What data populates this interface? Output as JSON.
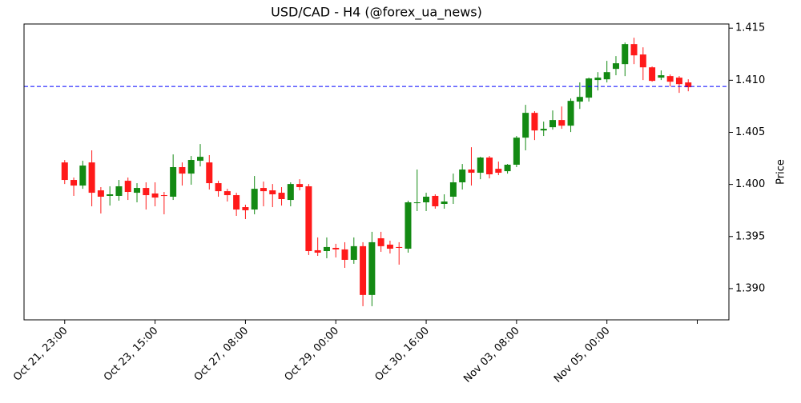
{
  "chart_data": {
    "type": "candlestick",
    "title": "USD/CAD - H4 (@forex_ua_news)",
    "y_label": "Price",
    "categories": [
      "Oct 21, 23:00",
      null,
      null,
      null,
      null,
      null,
      null,
      null,
      null,
      null,
      "Oct 23, 15:00",
      null,
      null,
      null,
      null,
      null,
      null,
      null,
      null,
      null,
      "Oct 27, 08:00",
      null,
      null,
      null,
      null,
      null,
      null,
      null,
      null,
      null,
      "Oct 29, 00:00",
      null,
      null,
      null,
      null,
      null,
      null,
      null,
      null,
      null,
      "Oct 30, 16:00",
      null,
      null,
      null,
      null,
      null,
      null,
      null,
      null,
      null,
      "Nov 03, 08:00",
      null,
      null,
      null,
      null,
      null,
      null,
      null,
      null,
      null,
      "Nov 05, 00:00",
      null,
      null,
      null,
      null,
      null,
      null,
      null,
      null,
      null
    ],
    "xticks": [
      0,
      10,
      20,
      30,
      40,
      50,
      60,
      70
    ],
    "xlim": [
      -4.5,
      73.5
    ],
    "open": [
      1.40211,
      1.40043,
      1.39989,
      1.40211,
      1.39943,
      1.3989,
      1.3989,
      1.40035,
      1.3992,
      1.39966,
      1.39913,
      1.39897,
      1.39882,
      1.40166,
      1.40104,
      1.40227,
      1.40211,
      1.40012,
      1.39935,
      1.39897,
      1.39782,
      1.39759,
      1.39966,
      1.39943,
      1.3992,
      1.39851,
      1.40004,
      1.39982,
      1.39368,
      1.3936,
      1.39391,
      1.39376,
      1.39276,
      1.39407,
      1.38939,
      1.39483,
      1.39422,
      1.39399,
      1.39383,
      1.3982,
      1.39828,
      1.3989,
      1.39813,
      1.39882,
      1.4002,
      1.40143,
      1.40112,
      1.40258,
      1.4015,
      1.40127,
      1.40189,
      1.40449,
      1.40687,
      1.40518,
      1.40549,
      1.40618,
      1.40564,
      1.40795,
      1.40833,
      1.41002,
      1.41009,
      1.41109,
      1.41155,
      1.41347,
      1.41247,
      1.41124,
      1.41025,
      1.4104,
      1.41025,
      1.40979
    ],
    "high": [
      1.40234,
      1.40066,
      1.40227,
      1.40327,
      1.39974,
      1.39982,
      1.40043,
      1.40066,
      1.40012,
      1.4002,
      1.4002,
      1.39928,
      1.40288,
      1.40211,
      1.40273,
      1.40388,
      1.40281,
      1.40035,
      1.39958,
      1.3992,
      1.39805,
      1.40081,
      1.40027,
      1.40004,
      1.39974,
      1.4002,
      1.4005,
      1.40004,
      1.39491,
      1.39491,
      1.3943,
      1.39445,
      1.39491,
      1.39445,
      1.39545,
      1.39545,
      1.3946,
      1.39445,
      1.39844,
      1.40143,
      1.3992,
      1.39905,
      1.39905,
      1.40104,
      1.40196,
      1.40357,
      1.40265,
      1.40273,
      1.40219,
      1.40196,
      1.40465,
      1.40764,
      1.40703,
      1.40603,
      1.4071,
      1.40748,
      1.40825,
      1.40979,
      1.41025,
      1.41078,
      1.41186,
      1.41232,
      1.41362,
      1.41408,
      1.41316,
      1.41132,
      1.41094,
      1.41055,
      1.4104,
      1.41009
    ],
    "low": [
      1.40004,
      1.3989,
      1.39958,
      1.3979,
      1.39721,
      1.39797,
      1.39844,
      1.39851,
      1.39828,
      1.39759,
      1.3979,
      1.39713,
      1.39851,
      1.39989,
      1.39997,
      1.40173,
      1.39951,
      1.39882,
      1.39836,
      1.39698,
      1.39667,
      1.39713,
      1.3979,
      1.39782,
      1.39797,
      1.3979,
      1.39943,
      1.39322,
      1.39314,
      1.39291,
      1.39299,
      1.39199,
      1.39238,
      1.38831,
      1.38831,
      1.39353,
      1.39337,
      1.3923,
      1.39345,
      1.39744,
      1.39744,
      1.39767,
      1.39767,
      1.39813,
      1.39951,
      1.39989,
      1.4005,
      1.40058,
      1.40089,
      1.40104,
      1.40166,
      1.40327,
      1.40426,
      1.40465,
      1.40526,
      1.40534,
      1.40503,
      1.40725,
      1.40795,
      1.40902,
      1.40979,
      1.41048,
      1.4104,
      1.41155,
      1.41002,
      1.40986,
      1.41002,
      1.4094,
      1.40879,
      1.40894
    ],
    "close": [
      1.40043,
      1.39989,
      1.40181,
      1.3992,
      1.39882,
      1.39905,
      1.39982,
      1.39928,
      1.39966,
      1.39897,
      1.39874,
      1.3989,
      1.40166,
      1.40104,
      1.40235,
      1.40265,
      1.40012,
      1.39935,
      1.39897,
      1.39759,
      1.39752,
      1.39958,
      1.39935,
      1.39905,
      1.39859,
      1.40004,
      1.39974,
      1.3936,
      1.39345,
      1.39399,
      1.39376,
      1.39276,
      1.39407,
      1.38939,
      1.39445,
      1.39407,
      1.39383,
      1.39391,
      1.39828,
      1.39828,
      1.39882,
      1.3979,
      1.39836,
      1.4002,
      1.40143,
      1.40112,
      1.40258,
      1.40097,
      1.40112,
      1.40189,
      1.40449,
      1.40687,
      1.40518,
      1.40534,
      1.40618,
      1.40564,
      1.40802,
      1.4084,
      1.41017,
      1.41025,
      1.41078,
      1.41163,
      1.41347,
      1.41239,
      1.41124,
      1.40994,
      1.41048,
      1.40986,
      1.40963,
      1.40933
    ],
    "up_color": "#138a13",
    "down_color": "#ff1a1a",
    "hline": {
      "value": 1.4094,
      "color": "#0000ff"
    },
    "ylim": [
      1.387,
      1.4154
    ],
    "yticks": [
      {
        "value": 1.39,
        "label": "1.390"
      },
      {
        "value": 1.395,
        "label": "1.395"
      },
      {
        "value": 1.4,
        "label": "1.400"
      },
      {
        "value": 1.405,
        "label": "1.405"
      },
      {
        "value": 1.41,
        "label": "1.410"
      },
      {
        "value": 1.415,
        "label": "1.415"
      }
    ]
  }
}
